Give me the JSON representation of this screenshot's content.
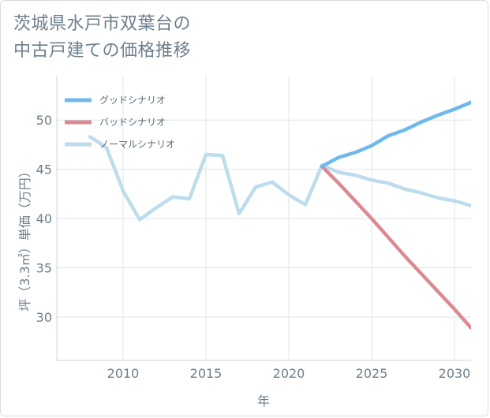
{
  "chart_data": {
    "type": "line",
    "title": [
      "茨城県水戸市双葉台の",
      "中古戸建ての価格推移"
    ],
    "xlabel": "年",
    "ylabel": "坪（3.3㎡）単価（万円）",
    "xlim": [
      2006,
      2031
    ],
    "ylim": [
      25.6,
      54.5
    ],
    "xticks": [
      2010,
      2015,
      2020,
      2025,
      2030
    ],
    "yticks": [
      30,
      35,
      40,
      45,
      50
    ],
    "grid": true,
    "legend_position": "top-left",
    "series": [
      {
        "name": "グッドシナリオ",
        "color": "#6fb9ea",
        "x": [
          2022,
          2023,
          2024,
          2025,
          2026,
          2027,
          2028,
          2029,
          2030,
          2031
        ],
        "y": [
          45.3,
          46.2,
          46.7,
          47.4,
          48.4,
          49.0,
          49.8,
          50.5,
          51.1,
          51.8
        ]
      },
      {
        "name": "バッドシナリオ",
        "color": "#dc8a92",
        "x": [
          2022,
          2023,
          2024,
          2025,
          2026,
          2027,
          2028,
          2029,
          2030,
          2031
        ],
        "y": [
          45.3,
          43.6,
          41.8,
          40.0,
          38.1,
          36.2,
          34.4,
          32.6,
          30.8,
          28.9
        ]
      },
      {
        "name": "ノーマルシナリオ",
        "color": "#bddcec",
        "x": [
          2008,
          2009,
          2010,
          2011,
          2012,
          2013,
          2014,
          2015,
          2016,
          2017,
          2018,
          2019,
          2020,
          2021,
          2022,
          2023,
          2024,
          2025,
          2026,
          2027,
          2028,
          2029,
          2030,
          2031
        ],
        "y": [
          48.3,
          47.2,
          42.8,
          39.9,
          41.1,
          42.2,
          42.0,
          46.5,
          46.4,
          40.5,
          43.2,
          43.7,
          42.4,
          41.4,
          45.4,
          44.7,
          44.4,
          43.9,
          43.6,
          43.0,
          42.6,
          42.1,
          41.8,
          41.3
        ]
      }
    ]
  }
}
